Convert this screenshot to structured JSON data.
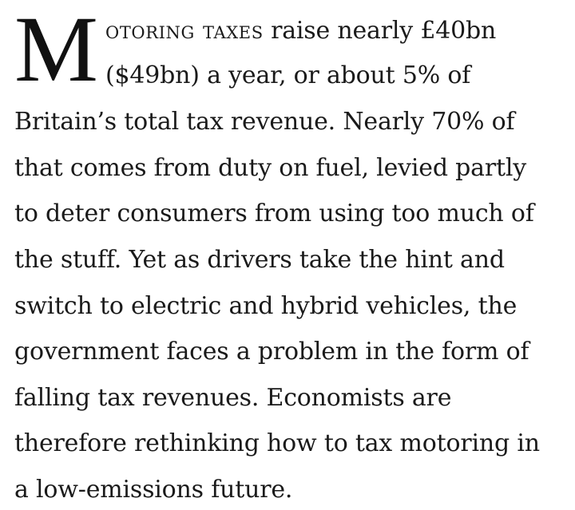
{
  "article": {
    "drop_cap": "M",
    "lead_smallcaps": "otoring taxes",
    "lead_rest": " raise nearly £40bn",
    "lines": [
      "($49bn) a year, or about 5% of",
      "Britain’s total tax revenue. Nearly 70% of",
      "that comes from duty on fuel, levied partly",
      "to deter consumers from using too much of",
      "the stuff. Yet as drivers take the hint and",
      "switch to electric and hybrid vehicles, the",
      "government faces a problem in the form of",
      "falling tax revenues. Economists are",
      "therefore rethinking how to tax motoring in",
      "a low-emissions future."
    ]
  }
}
